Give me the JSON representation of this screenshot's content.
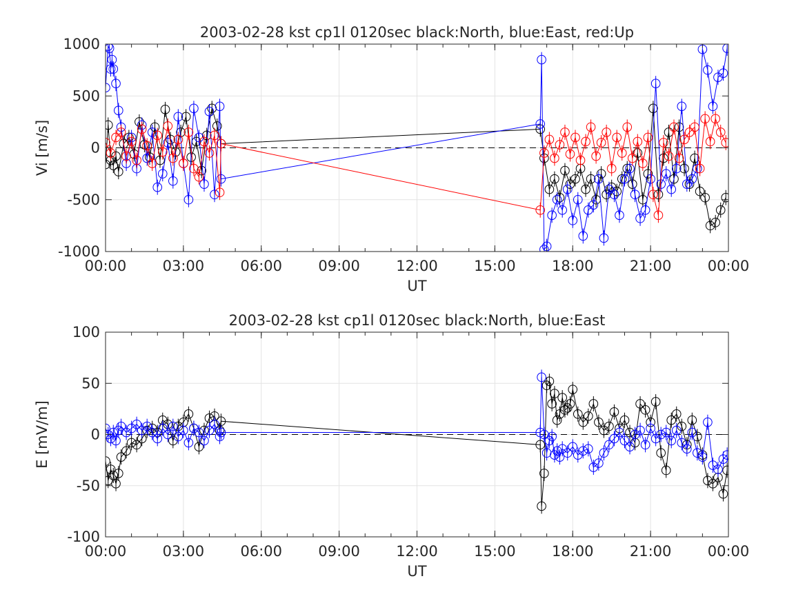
{
  "chart_data": [
    {
      "type": "scatter",
      "title": "2003-02-28 kst cp1l 0120sec black:North, blue:East, red:Up",
      "xlabel": "UT",
      "ylabel": "Vi [m/s]",
      "xlim": [
        0,
        24
      ],
      "ylim": [
        -1000,
        1000
      ],
      "xtick_labels": [
        "00:00",
        "03:00",
        "06:00",
        "09:00",
        "12:00",
        "15:00",
        "18:00",
        "21:00",
        "00:00"
      ],
      "ytick_labels": [
        "-1000",
        "-500",
        "0",
        "500",
        "1000"
      ],
      "grid": true,
      "zero_line": "dashed",
      "series": [
        {
          "name": "North",
          "color": "#000000",
          "x": [
            0.0,
            0.1,
            0.2,
            0.3,
            0.4,
            0.5,
            0.7,
            0.9,
            1.1,
            1.3,
            1.5,
            1.7,
            1.9,
            2.1,
            2.3,
            2.5,
            2.7,
            2.9,
            3.1,
            3.3,
            3.5,
            3.7,
            3.9,
            4.1,
            4.3,
            4.45,
            16.75,
            16.9,
            17.1,
            17.3,
            17.5,
            17.7,
            17.9,
            18.1,
            18.3,
            18.5,
            18.7,
            18.9,
            19.1,
            19.3,
            19.5,
            19.7,
            19.9,
            20.1,
            20.3,
            20.5,
            20.7,
            20.9,
            21.1,
            21.3,
            21.5,
            21.7,
            21.9,
            22.1,
            22.3,
            22.5,
            22.7,
            22.9,
            23.1,
            23.3,
            23.5,
            23.7,
            23.9
          ],
          "y": [
            -160,
            220,
            -120,
            -170,
            -80,
            -230,
            40,
            100,
            -60,
            250,
            30,
            -90,
            200,
            -120,
            370,
            80,
            -40,
            150,
            300,
            -90,
            60,
            -220,
            120,
            380,
            210,
            40,
            180,
            -100,
            -400,
            -300,
            -480,
            -220,
            -350,
            -300,
            -200,
            -400,
            -300,
            -500,
            -250,
            -450,
            -380,
            -420,
            -300,
            -200,
            -350,
            -50,
            -500,
            -250,
            380,
            -450,
            -100,
            150,
            -300,
            200,
            -200,
            -350,
            -100,
            -420,
            -480,
            -750,
            -720,
            -600,
            -480
          ]
        },
        {
          "name": "East",
          "color": "#0000ff",
          "x": [
            0.0,
            0.1,
            0.15,
            0.2,
            0.25,
            0.3,
            0.4,
            0.5,
            0.6,
            0.8,
            1.0,
            1.2,
            1.4,
            1.6,
            1.8,
            2.0,
            2.2,
            2.4,
            2.6,
            2.8,
            3.0,
            3.2,
            3.4,
            3.6,
            3.8,
            4.0,
            4.2,
            4.4,
            4.45,
            16.75,
            16.8,
            16.9,
            17.0,
            17.2,
            17.4,
            17.6,
            17.8,
            18.0,
            18.2,
            18.4,
            18.6,
            18.8,
            19.0,
            19.2,
            19.4,
            19.6,
            19.8,
            20.0,
            20.2,
            20.4,
            20.6,
            20.8,
            21.0,
            21.2,
            21.4,
            21.6,
            21.8,
            22.0,
            22.2,
            22.4,
            22.6,
            22.8,
            23.0,
            23.2,
            23.4,
            23.6,
            23.8,
            23.95
          ],
          "y": [
            580,
            980,
            960,
            760,
            850,
            760,
            620,
            360,
            200,
            -150,
            100,
            -200,
            220,
            -100,
            150,
            -380,
            -250,
            50,
            -320,
            300,
            -150,
            -500,
            380,
            100,
            -350,
            350,
            -450,
            400,
            -300,
            230,
            850,
            -980,
            -950,
            -650,
            -500,
            -600,
            -400,
            -700,
            -500,
            -850,
            -600,
            -550,
            -300,
            -870,
            -400,
            -450,
            -650,
            -300,
            -200,
            -450,
            -680,
            -600,
            -300,
            620,
            -350,
            -250,
            -400,
            -200,
            400,
            -350,
            -300,
            -200,
            950,
            750,
            400,
            680,
            720,
            960
          ]
        },
        {
          "name": "Up",
          "color": "#ff0000",
          "x": [
            0.0,
            0.2,
            0.4,
            0.6,
            0.8,
            1.0,
            1.2,
            1.4,
            1.6,
            1.8,
            2.0,
            2.2,
            2.4,
            2.6,
            2.8,
            3.0,
            3.2,
            3.4,
            3.6,
            3.8,
            4.0,
            4.2,
            4.4,
            4.45,
            16.75,
            16.9,
            17.1,
            17.3,
            17.5,
            17.7,
            17.9,
            18.1,
            18.3,
            18.5,
            18.7,
            18.9,
            19.1,
            19.3,
            19.5,
            19.7,
            19.9,
            20.1,
            20.3,
            20.5,
            20.7,
            20.9,
            21.1,
            21.3,
            21.5,
            21.7,
            21.9,
            22.1,
            22.3,
            22.5,
            22.7,
            22.9,
            23.1,
            23.3,
            23.5,
            23.7,
            23.9
          ],
          "y": [
            50,
            -50,
            100,
            150,
            -80,
            60,
            -120,
            180,
            20,
            -150,
            120,
            -40,
            210,
            -100,
            80,
            -150,
            150,
            -200,
            -280,
            60,
            -50,
            120,
            -430,
            40,
            -600,
            -50,
            80,
            -100,
            30,
            150,
            -60,
            100,
            -120,
            60,
            200,
            -80,
            50,
            150,
            -200,
            100,
            -50,
            200,
            -100,
            60,
            -150,
            100,
            -450,
            -650,
            50,
            -80,
            200,
            -100,
            80,
            150,
            200,
            -200,
            280,
            60,
            280,
            150,
            50
          ]
        }
      ]
    },
    {
      "type": "scatter",
      "title": "2003-02-28 kst cp1l 0120sec black:North, blue:East",
      "xlabel": "UT",
      "ylabel": "E [mV/m]",
      "xlim": [
        0,
        24
      ],
      "ylim": [
        -100,
        100
      ],
      "xtick_labels": [
        "00:00",
        "03:00",
        "06:00",
        "09:00",
        "12:00",
        "15:00",
        "18:00",
        "21:00",
        "00:00"
      ],
      "ytick_labels": [
        "-100",
        "-50",
        "0",
        "50",
        "100"
      ],
      "grid": true,
      "zero_line": "dashed",
      "series": [
        {
          "name": "North",
          "color": "#000000",
          "x": [
            0.0,
            0.1,
            0.2,
            0.3,
            0.4,
            0.5,
            0.6,
            0.8,
            1.0,
            1.2,
            1.4,
            1.6,
            1.8,
            2.0,
            2.2,
            2.4,
            2.6,
            2.8,
            3.0,
            3.2,
            3.4,
            3.6,
            3.8,
            4.0,
            4.2,
            4.4,
            4.45,
            16.75,
            16.8,
            16.9,
            17.0,
            17.1,
            17.2,
            17.3,
            17.4,
            17.5,
            17.6,
            17.7,
            17.8,
            17.9,
            18.0,
            18.2,
            18.4,
            18.6,
            18.8,
            19.0,
            19.2,
            19.4,
            19.6,
            19.8,
            20.0,
            20.2,
            20.4,
            20.6,
            20.8,
            21.0,
            21.2,
            21.4,
            21.6,
            21.8,
            22.0,
            22.2,
            22.4,
            22.6,
            22.8,
            23.0,
            23.2,
            23.4,
            23.6,
            23.8,
            23.95
          ],
          "y": [
            -26,
            -45,
            -34,
            -40,
            -48,
            -38,
            -22,
            -16,
            -8,
            -10,
            -4,
            4,
            6,
            2,
            14,
            10,
            -6,
            8,
            12,
            20,
            6,
            -12,
            4,
            16,
            18,
            4,
            13,
            -10,
            -70,
            -38,
            48,
            52,
            30,
            40,
            14,
            20,
            36,
            24,
            26,
            30,
            44,
            20,
            12,
            18,
            30,
            12,
            4,
            8,
            22,
            6,
            14,
            2,
            -8,
            30,
            24,
            12,
            32,
            -18,
            -35,
            14,
            20,
            8,
            -10,
            14,
            -2,
            -20,
            -45,
            -48,
            -42,
            -58,
            -35
          ]
        },
        {
          "name": "East",
          "color": "#0000ff",
          "x": [
            0.0,
            0.1,
            0.2,
            0.3,
            0.4,
            0.5,
            0.6,
            0.8,
            1.0,
            1.2,
            1.4,
            1.6,
            1.8,
            2.0,
            2.2,
            2.4,
            2.6,
            2.8,
            3.0,
            3.2,
            3.4,
            3.6,
            3.8,
            4.0,
            4.2,
            4.4,
            4.45,
            16.75,
            16.8,
            16.9,
            17.0,
            17.1,
            17.2,
            17.3,
            17.4,
            17.5,
            17.6,
            17.8,
            18.0,
            18.2,
            18.4,
            18.6,
            18.8,
            19.0,
            19.2,
            19.4,
            19.6,
            19.8,
            20.0,
            20.2,
            20.4,
            20.6,
            20.8,
            21.0,
            21.2,
            21.4,
            21.6,
            21.8,
            22.0,
            22.2,
            22.4,
            22.6,
            22.8,
            23.0,
            23.2,
            23.4,
            23.6,
            23.8,
            23.95
          ],
          "y": [
            6,
            0,
            -4,
            2,
            -6,
            4,
            8,
            2,
            6,
            10,
            4,
            8,
            2,
            -4,
            6,
            0,
            8,
            -2,
            4,
            -8,
            6,
            2,
            -6,
            4,
            10,
            -2,
            2,
            2,
            56,
            0,
            -18,
            -6,
            -2,
            -20,
            -16,
            -22,
            -14,
            -18,
            -12,
            -20,
            -16,
            -14,
            -32,
            -28,
            -18,
            -10,
            -4,
            2,
            -6,
            -12,
            0,
            4,
            -10,
            6,
            -4,
            0,
            2,
            -6,
            4,
            -8,
            -14,
            2,
            -18,
            -22,
            12,
            -30,
            -34,
            -24,
            -20
          ]
        }
      ]
    }
  ]
}
